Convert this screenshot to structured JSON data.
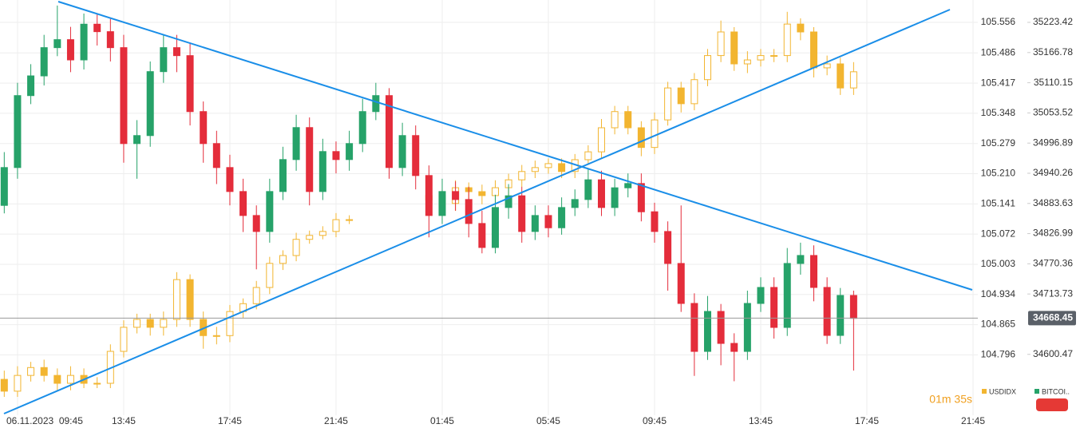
{
  "chart_data": {
    "type": "candlestick",
    "x": [
      -0.5,
      0,
      0.5,
      1,
      1.5,
      2,
      2.5,
      3,
      3.5,
      4,
      4.5,
      5,
      5.5,
      6,
      6.5,
      7,
      7.5,
      8,
      8.5,
      9,
      9.5,
      10,
      10.5,
      11,
      11.5,
      12,
      12.5,
      13,
      13.5,
      14,
      14.5,
      15,
      15.5,
      16,
      16.5,
      17,
      17.5,
      18,
      18.5,
      19,
      19.5,
      20,
      20.5,
      21,
      21.5,
      22,
      22.5,
      23,
      23.5,
      24,
      24.5,
      25,
      25.5,
      26,
      26.5,
      27,
      27.5,
      28,
      28.5,
      29,
      29.5,
      30,
      30.5,
      31,
      31.5
    ],
    "xlim": [
      -0.66,
      36.18
    ],
    "xticks": [
      {
        "value": 0,
        "label": "06.11.2023  09:45"
      },
      {
        "value": 4,
        "label": "13:45"
      },
      {
        "value": 8,
        "label": "17:45"
      },
      {
        "value": 12,
        "label": "21:45"
      },
      {
        "value": 16,
        "label": "01:45"
      },
      {
        "value": 20,
        "label": "05:45"
      },
      {
        "value": 24,
        "label": "09:45"
      },
      {
        "value": 28,
        "label": "13:45"
      },
      {
        "value": 32,
        "label": "17:45"
      },
      {
        "value": 36,
        "label": "21:45"
      }
    ],
    "ylim": [
      104.658,
      105.607
    ],
    "yticks": [
      105.556,
      105.486,
      105.417,
      105.348,
      105.279,
      {
        "value": 105.21,
        "label": "105.210"
      },
      105.141,
      105.072,
      105.003,
      104.934,
      104.865,
      104.796
    ],
    "y2lim": [
      34486.2,
      35265.4
    ],
    "y2ticks": [
      35223.42,
      35166.78,
      35110.15,
      35053.52,
      34996.89,
      34940.26,
      34883.63,
      34826.99,
      34770.36,
      34713.73,
      34600.47
    ],
    "grid": true,
    "last_price": 34668.45,
    "countdown": "01m 35s",
    "series": [
      {
        "name": "USDIDX",
        "color": "#f2b530",
        "axis": "y",
        "open": [
          104.74,
          104.713,
          104.749,
          104.767,
          104.749,
          104.731,
          104.749,
          104.731,
          104.731,
          104.804,
          104.859,
          104.877,
          104.859,
          104.877,
          104.968,
          104.877,
          104.84,
          104.84,
          104.895,
          104.913,
          104.95,
          105.005,
          105.023,
          105.06,
          105.069,
          105.078,
          105.105,
          null,
          null,
          null,
          null,
          null,
          105.15,
          105.16,
          105.142,
          105.178,
          105.169,
          105.16,
          105.178,
          105.196,
          105.215,
          105.224,
          105.233,
          105.215,
          105.242,
          105.26,
          105.315,
          105.352,
          105.315,
          105.27,
          105.333,
          105.406,
          105.37,
          105.425,
          105.48,
          105.534,
          105.461,
          105.47,
          105.48,
          105.48,
          105.552,
          105.534,
          105.452,
          105.461,
          105.406
        ],
        "high": [
          104.76,
          104.77,
          104.78,
          104.785,
          104.765,
          104.77,
          104.765,
          104.745,
          104.82,
          104.875,
          104.89,
          104.89,
          104.895,
          104.985,
          104.98,
          104.895,
          104.86,
          104.91,
          104.925,
          104.965,
          105.02,
          105.035,
          105.075,
          105.08,
          105.09,
          105.12,
          105.115,
          null,
          null,
          null,
          null,
          null,
          105.175,
          105.175,
          105.195,
          105.19,
          105.185,
          105.195,
          105.21,
          105.23,
          105.24,
          105.245,
          105.245,
          105.255,
          105.275,
          105.335,
          105.365,
          105.365,
          105.33,
          105.35,
          105.42,
          105.42,
          105.44,
          105.495,
          105.56,
          105.545,
          105.49,
          105.495,
          105.495,
          105.58,
          105.565,
          105.545,
          105.48,
          105.475,
          105.465
        ],
        "low": [
          104.7,
          104.7,
          104.735,
          104.735,
          104.715,
          104.715,
          104.72,
          104.72,
          104.72,
          104.79,
          104.845,
          104.84,
          104.84,
          104.86,
          104.86,
          104.81,
          104.82,
          104.825,
          104.88,
          104.9,
          104.935,
          104.99,
          105.01,
          105.05,
          105.06,
          105.065,
          105.095,
          null,
          null,
          null,
          null,
          null,
          105.135,
          105.125,
          105.125,
          105.15,
          105.14,
          105.145,
          105.16,
          105.18,
          105.2,
          105.21,
          105.2,
          105.2,
          105.23,
          105.245,
          105.3,
          105.3,
          105.25,
          105.255,
          105.32,
          105.35,
          105.355,
          105.41,
          105.465,
          105.445,
          105.44,
          105.455,
          105.465,
          105.465,
          105.515,
          105.43,
          105.435,
          105.39,
          105.39
        ],
        "close": [
          104.713,
          104.749,
          104.767,
          104.749,
          104.731,
          104.749,
          104.731,
          104.731,
          104.804,
          104.859,
          104.877,
          104.859,
          104.877,
          104.968,
          104.877,
          104.84,
          104.84,
          104.895,
          104.913,
          104.95,
          105.005,
          105.023,
          105.06,
          105.069,
          105.078,
          105.105,
          105.105,
          null,
          null,
          null,
          null,
          null,
          105.16,
          105.142,
          105.178,
          105.169,
          105.16,
          105.178,
          105.196,
          105.215,
          105.224,
          105.233,
          105.215,
          105.242,
          105.26,
          105.315,
          105.352,
          105.315,
          105.27,
          105.333,
          105.406,
          105.37,
          105.425,
          105.48,
          105.534,
          105.461,
          105.47,
          105.48,
          105.48,
          105.552,
          105.534,
          105.452,
          105.461,
          105.406,
          105.443
        ]
      },
      {
        "name": "BITCOI..",
        "color": "#26a269",
        "down_color": "#e42d3b",
        "axis": "y2",
        "open": [
          34880,
          34951,
          35086,
          35123,
          35176,
          35191,
          35153,
          35220,
          35206,
          35176,
          34996,
          35011,
          35131,
          35176,
          35161,
          35056,
          34996,
          34951,
          34906,
          34861,
          34831,
          34906,
          34966,
          35026,
          34906,
          34981,
          34966,
          34996,
          35056,
          35086,
          34951,
          35011,
          34936,
          34861,
          34906,
          34891,
          34846,
          34801,
          34876,
          34898,
          34831,
          34861,
          34838,
          34876,
          34891,
          34928,
          34876,
          34913,
          34921,
          34868,
          34831,
          34771,
          34696,
          34606,
          34681,
          34621,
          34606,
          34696,
          34726,
          34651,
          34771,
          34786,
          34726,
          34636,
          34711
        ],
        "high": [
          34980,
          35110,
          35145,
          35200,
          35255,
          35215,
          35240,
          35240,
          35230,
          35200,
          35040,
          35150,
          35200,
          35200,
          35185,
          35075,
          35020,
          34975,
          34930,
          34880,
          34930,
          34990,
          35050,
          35045,
          35005,
          35000,
          35020,
          35080,
          35110,
          35100,
          35035,
          35030,
          34955,
          34930,
          34925,
          34915,
          34870,
          34900,
          34920,
          34915,
          34880,
          34880,
          34895,
          34910,
          34950,
          34945,
          34930,
          34940,
          34940,
          34885,
          34850,
          34880,
          34715,
          34710,
          34695,
          34640,
          34720,
          34745,
          34745,
          34800,
          34810,
          34805,
          34745,
          34725,
          34720
        ],
        "low": [
          34865,
          34930,
          35070,
          35105,
          35160,
          35130,
          35135,
          35180,
          35150,
          34960,
          34930,
          34990,
          35110,
          35130,
          35030,
          34960,
          34920,
          34880,
          34830,
          34760,
          34810,
          34890,
          34945,
          34880,
          34890,
          34940,
          34945,
          34980,
          35040,
          34930,
          34935,
          34910,
          34820,
          34845,
          34870,
          34820,
          34790,
          34790,
          34855,
          34810,
          34815,
          34820,
          34825,
          34860,
          34875,
          34860,
          34860,
          34895,
          34850,
          34810,
          34720,
          34680,
          34560,
          34590,
          34580,
          34550,
          34590,
          34680,
          34630,
          34635,
          34750,
          34700,
          34620,
          34620,
          34570
        ],
        "close": [
          34951,
          35086,
          35123,
          35176,
          35191,
          35153,
          35220,
          35206,
          35176,
          34996,
          35011,
          35131,
          35176,
          35161,
          35056,
          34996,
          34951,
          34906,
          34861,
          34831,
          34906,
          34966,
          35026,
          34906,
          34981,
          34966,
          34996,
          35056,
          35086,
          34951,
          35011,
          34936,
          34861,
          34906,
          34891,
          34846,
          34801,
          34876,
          34898,
          34831,
          34861,
          34838,
          34876,
          34891,
          34928,
          34876,
          34913,
          34921,
          34868,
          34831,
          34771,
          34696,
          34606,
          34681,
          34621,
          34606,
          34696,
          34726,
          34651,
          34771,
          34786,
          34726,
          34636,
          34711,
          34668
        ]
      }
    ]
  }
}
